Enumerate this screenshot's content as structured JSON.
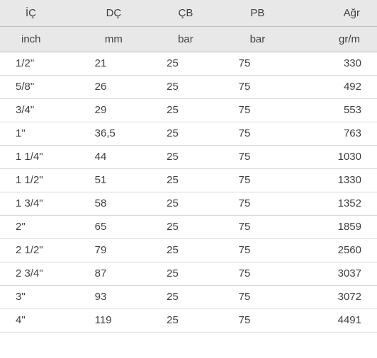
{
  "table": {
    "type": "table",
    "background_color": "#ffffff",
    "header_background": "#e8e8e8",
    "header_border_color": "#bfbfbf",
    "row_border_color": "#d9d9d9",
    "text_color": "#404040",
    "font_size_pt": 11,
    "columns": [
      {
        "key": "ic",
        "header": "İÇ",
        "unit": "inch",
        "align": "left"
      },
      {
        "key": "dc",
        "header": "DÇ",
        "unit": "mm",
        "align": "left"
      },
      {
        "key": "cb",
        "header": "ÇB",
        "unit": "bar",
        "align": "left"
      },
      {
        "key": "pb",
        "header": "PB",
        "unit": "bar",
        "align": "left"
      },
      {
        "key": "agr",
        "header": "Ağr",
        "unit": "gr/m",
        "align": "right"
      }
    ],
    "rows": [
      {
        "ic": "1/2\"",
        "dc": "21",
        "cb": "25",
        "pb": "75",
        "agr": "330"
      },
      {
        "ic": "5/8\"",
        "dc": "26",
        "cb": "25",
        "pb": "75",
        "agr": "492"
      },
      {
        "ic": "3/4\"",
        "dc": "29",
        "cb": "25",
        "pb": "75",
        "agr": "553"
      },
      {
        "ic": "1\"",
        "dc": "36,5",
        "cb": "25",
        "pb": "75",
        "agr": "763"
      },
      {
        "ic": "1 1/4\"",
        "dc": "44",
        "cb": "25",
        "pb": "75",
        "agr": "1030"
      },
      {
        "ic": "1 1/2\"",
        "dc": "51",
        "cb": "25",
        "pb": "75",
        "agr": "1330"
      },
      {
        "ic": "1 3/4\"",
        "dc": "58",
        "cb": "25",
        "pb": "75",
        "agr": "1352"
      },
      {
        "ic": "2\"",
        "dc": "65",
        "cb": "25",
        "pb": "75",
        "agr": "1859"
      },
      {
        "ic": "2 1/2\"",
        "dc": "79",
        "cb": "25",
        "pb": "75",
        "agr": "2560"
      },
      {
        "ic": "2 3/4\"",
        "dc": "87",
        "cb": "25",
        "pb": "75",
        "agr": "3037"
      },
      {
        "ic": "3\"",
        "dc": "93",
        "cb": "25",
        "pb": "75",
        "agr": "3072"
      },
      {
        "ic": "4\"",
        "dc": "119",
        "cb": "25",
        "pb": "75",
        "agr": "4491"
      }
    ]
  }
}
